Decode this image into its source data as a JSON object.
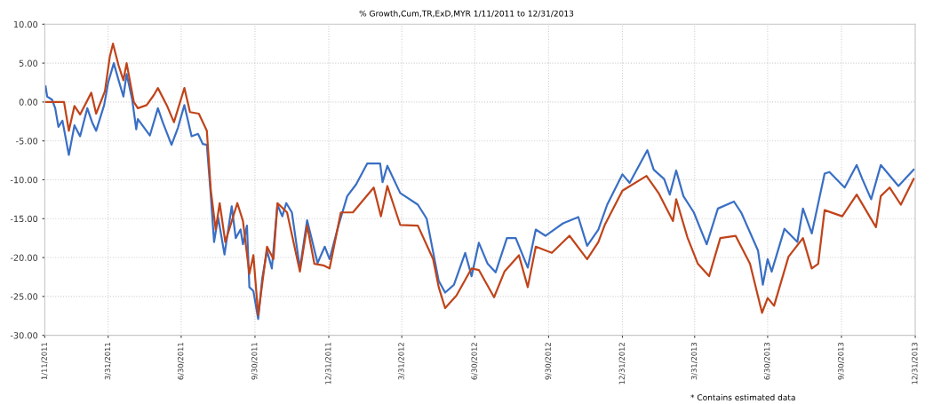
{
  "chart_data": {
    "type": "line",
    "title": "% Growth,Cum,TR,ExD,MYR 1/11/2011 to 12/31/2013",
    "annotations": [
      "* Contains estimated data"
    ],
    "xlim": [
      "2011-01-11",
      "2013-12-31"
    ],
    "xticks": [
      {
        "value": "2011-01-11",
        "label": "1/11/2011"
      },
      {
        "value": "2011-03-31",
        "label": "3/31/2011"
      },
      {
        "value": "2011-06-30",
        "label": "6/30/2011"
      },
      {
        "value": "2011-09-30",
        "label": "9/30/2011"
      },
      {
        "value": "2011-12-31",
        "label": "12/31/2011"
      },
      {
        "value": "2012-03-31",
        "label": "3/31/2012"
      },
      {
        "value": "2012-06-30",
        "label": "6/30/2012"
      },
      {
        "value": "2012-09-30",
        "label": "9/30/2012"
      },
      {
        "value": "2012-12-31",
        "label": "12/31/2012"
      },
      {
        "value": "2013-03-31",
        "label": "3/31/2013"
      },
      {
        "value": "2013-06-30",
        "label": "6/30/2013"
      },
      {
        "value": "2013-09-30",
        "label": "9/30/2013"
      },
      {
        "value": "2013-12-31",
        "label": "12/31/2013"
      }
    ],
    "ylim": [
      -30,
      10
    ],
    "yticks": [
      {
        "value": -30,
        "label": "-30.00"
      },
      {
        "value": -25,
        "label": "-25.00"
      },
      {
        "value": -20,
        "label": "-20.00"
      },
      {
        "value": -15,
        "label": "-15.00"
      },
      {
        "value": -10,
        "label": "-10.00"
      },
      {
        "value": -5,
        "label": "-5.00"
      },
      {
        "value": 0,
        "label": "0.00"
      },
      {
        "value": 5,
        "label": "5.00"
      },
      {
        "value": 10,
        "label": "10.00"
      }
    ],
    "grid": true,
    "marker": "none",
    "line_style": "solid",
    "series": [
      {
        "color": "#3a6fc4",
        "x": [
          "2011-01-12",
          "2011-01-14",
          "2011-01-20",
          "2011-01-24",
          "2011-01-28",
          "2011-02-02",
          "2011-02-10",
          "2011-02-17",
          "2011-02-24",
          "2011-03-05",
          "2011-03-11",
          "2011-03-16",
          "2011-03-26",
          "2011-03-31",
          "2011-04-07",
          "2011-04-13",
          "2011-04-19",
          "2011-04-23",
          "2011-04-30",
          "2011-05-05",
          "2011-05-07",
          "2011-05-22",
          "2011-06-01",
          "2011-06-07",
          "2011-06-18",
          "2011-06-26",
          "2011-07-04",
          "2011-07-13",
          "2011-07-21",
          "2011-07-27",
          "2011-08-01",
          "2011-08-06",
          "2011-08-10",
          "2011-08-15",
          "2011-08-23",
          "2011-09-01",
          "2011-09-06",
          "2011-09-12",
          "2011-09-15",
          "2011-09-20",
          "2011-09-23",
          "2011-09-28",
          "2011-10-04",
          "2011-10-09",
          "2011-10-15",
          "2011-10-21",
          "2011-10-28",
          "2011-11-03",
          "2011-11-08",
          "2011-11-15",
          "2011-11-25",
          "2011-12-04",
          "2011-12-17",
          "2011-12-26",
          "2012-01-01",
          "2012-01-12",
          "2012-01-23",
          "2012-02-03",
          "2012-02-17",
          "2012-03-04",
          "2012-03-07",
          "2012-03-13",
          "2012-03-29",
          "2012-04-20",
          "2012-05-01",
          "2012-05-16",
          "2012-05-24",
          "2012-06-04",
          "2012-06-18",
          "2012-06-26",
          "2012-07-05",
          "2012-07-16",
          "2012-07-26",
          "2012-08-09",
          "2012-08-20",
          "2012-09-04",
          "2012-09-14",
          "2012-09-26",
          "2012-10-18",
          "2012-11-06",
          "2012-11-17",
          "2012-12-01",
          "2012-12-12",
          "2012-12-31",
          "2013-01-09",
          "2013-01-31",
          "2013-02-08",
          "2013-02-21",
          "2013-02-28",
          "2013-03-08",
          "2013-03-17",
          "2013-03-30",
          "2013-04-15",
          "2013-04-29",
          "2013-05-19",
          "2013-05-28",
          "2013-06-18",
          "2013-06-24",
          "2013-06-30",
          "2013-07-05",
          "2013-07-21",
          "2013-08-06",
          "2013-08-13",
          "2013-08-24",
          "2013-09-09",
          "2013-09-15",
          "2013-10-04",
          "2013-10-19",
          "2013-10-26",
          "2013-11-06",
          "2013-11-18",
          "2013-12-10",
          "2013-12-29"
        ],
        "values": [
          2.0,
          0.7,
          0.3,
          -0.8,
          -3.2,
          -2.4,
          -6.8,
          -3.0,
          -4.4,
          -0.8,
          -2.6,
          -3.7,
          -0.4,
          2.5,
          5.0,
          2.8,
          0.7,
          3.6,
          0.3,
          -3.5,
          -2.2,
          -4.3,
          -0.8,
          -2.6,
          -5.5,
          -3.3,
          -0.4,
          -4.4,
          -4.1,
          -5.4,
          -5.5,
          -12.1,
          -18.0,
          -14.8,
          -19.6,
          -13.4,
          -17.5,
          -16.4,
          -18.3,
          -15.9,
          -23.8,
          -24.3,
          -27.9,
          -22.7,
          -19.1,
          -21.4,
          -13.2,
          -14.7,
          -13.0,
          -14.2,
          -21.4,
          -15.2,
          -20.7,
          -18.6,
          -20.2,
          -15.9,
          -12.1,
          -10.6,
          -7.9,
          -7.9,
          -10.3,
          -8.2,
          -11.7,
          -13.2,
          -15.0,
          -23.0,
          -24.5,
          -23.5,
          -19.4,
          -22.4,
          -18.1,
          -20.8,
          -21.9,
          -17.5,
          -17.5,
          -21.3,
          -16.4,
          -17.2,
          -15.6,
          -14.8,
          -18.5,
          -16.4,
          -13.2,
          -9.3,
          -10.4,
          -6.2,
          -8.7,
          -9.9,
          -11.9,
          -8.8,
          -12.1,
          -14.2,
          -18.3,
          -13.7,
          -12.8,
          -14.2,
          -19.1,
          -23.5,
          -20.2,
          -21.8,
          -16.3,
          -18.0,
          -13.7,
          -16.9,
          -9.2,
          -9.0,
          -11.0,
          -8.1,
          -9.9,
          -12.5,
          -8.1,
          -10.8,
          -8.7
        ]
      },
      {
        "color": "#c0441a",
        "x": [
          "2011-01-12",
          "2011-02-04",
          "2011-02-10",
          "2011-02-17",
          "2011-02-24",
          "2011-03-10",
          "2011-03-16",
          "2011-03-27",
          "2011-04-02",
          "2011-04-06",
          "2011-04-13",
          "2011-04-19",
          "2011-04-23",
          "2011-05-02",
          "2011-05-07",
          "2011-05-18",
          "2011-05-27",
          "2011-06-01",
          "2011-06-12",
          "2011-06-21",
          "2011-07-04",
          "2011-07-11",
          "2011-07-22",
          "2011-08-01",
          "2011-08-06",
          "2011-08-12",
          "2011-08-17",
          "2011-08-24",
          "2011-09-08",
          "2011-09-15",
          "2011-09-23",
          "2011-09-28",
          "2011-10-04",
          "2011-10-15",
          "2011-10-23",
          "2011-10-28",
          "2011-11-09",
          "2011-11-25",
          "2011-12-04",
          "2011-12-13",
          "2011-12-24",
          "2012-01-01",
          "2012-01-15",
          "2012-01-30",
          "2012-02-25",
          "2012-03-05",
          "2012-03-13",
          "2012-03-29",
          "2012-04-20",
          "2012-05-09",
          "2012-05-16",
          "2012-05-24",
          "2012-06-07",
          "2012-06-26",
          "2012-07-05",
          "2012-07-24",
          "2012-08-06",
          "2012-08-24",
          "2012-09-04",
          "2012-09-14",
          "2012-10-04",
          "2012-10-26",
          "2012-11-17",
          "2012-12-01",
          "2012-12-09",
          "2012-12-31",
          "2013-01-30",
          "2013-02-14",
          "2013-03-04",
          "2013-03-08",
          "2013-03-22",
          "2013-04-04",
          "2013-04-18",
          "2013-05-02",
          "2013-05-21",
          "2013-06-08",
          "2013-06-23",
          "2013-06-30",
          "2013-07-08",
          "2013-07-26",
          "2013-08-13",
          "2013-08-24",
          "2013-09-01",
          "2013-09-09",
          "2013-10-01",
          "2013-10-19",
          "2013-11-12",
          "2013-11-18",
          "2013-11-29",
          "2013-12-13",
          "2013-12-29"
        ],
        "values": [
          0.0,
          0.0,
          -3.7,
          -0.5,
          -1.6,
          1.2,
          -1.5,
          1.4,
          5.8,
          7.5,
          4.7,
          2.8,
          5.0,
          0.0,
          -0.8,
          -0.4,
          0.9,
          1.8,
          -0.4,
          -2.6,
          1.8,
          -1.3,
          -1.5,
          -3.7,
          -11.4,
          -16.4,
          -13.0,
          -18.0,
          -13.0,
          -15.3,
          -22.1,
          -19.7,
          -27.4,
          -18.6,
          -20.2,
          -13.0,
          -14.2,
          -21.8,
          -15.9,
          -20.8,
          -21.0,
          -21.4,
          -14.2,
          -14.2,
          -11.0,
          -14.7,
          -10.8,
          -15.8,
          -15.9,
          -20.2,
          -23.8,
          -26.5,
          -24.9,
          -21.4,
          -21.6,
          -25.1,
          -21.8,
          -19.7,
          -23.8,
          -18.6,
          -19.4,
          -17.2,
          -20.2,
          -18.0,
          -15.8,
          -11.4,
          -9.5,
          -11.7,
          -15.3,
          -12.5,
          -17.4,
          -20.8,
          -22.4,
          -17.5,
          -17.2,
          -20.8,
          -27.1,
          -25.2,
          -26.2,
          -19.9,
          -17.5,
          -21.4,
          -20.8,
          -13.9,
          -14.7,
          -11.9,
          -16.1,
          -12.1,
          -11.0,
          -13.2,
          -9.9
        ]
      }
    ]
  }
}
